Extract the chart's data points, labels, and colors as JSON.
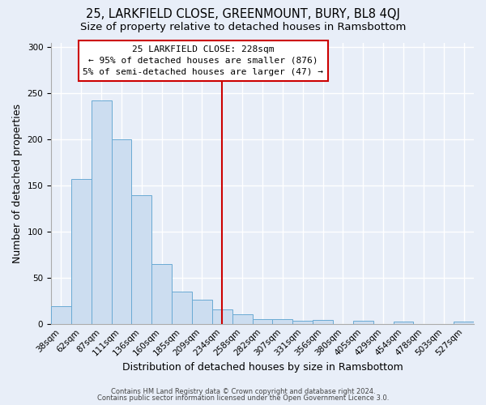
{
  "title": "25, LARKFIELD CLOSE, GREENMOUNT, BURY, BL8 4QJ",
  "subtitle": "Size of property relative to detached houses in Ramsbottom",
  "xlabel": "Distribution of detached houses by size in Ramsbottom",
  "ylabel": "Number of detached properties",
  "bar_labels": [
    "38sqm",
    "62sqm",
    "87sqm",
    "111sqm",
    "136sqm",
    "160sqm",
    "185sqm",
    "209sqm",
    "234sqm",
    "258sqm",
    "282sqm",
    "307sqm",
    "331sqm",
    "356sqm",
    "380sqm",
    "405sqm",
    "429sqm",
    "454sqm",
    "478sqm",
    "503sqm",
    "527sqm"
  ],
  "bar_heights": [
    19,
    157,
    242,
    200,
    139,
    65,
    35,
    26,
    16,
    10,
    5,
    5,
    3,
    4,
    0,
    3,
    0,
    2,
    0,
    0,
    2
  ],
  "bar_color": "#ccddf0",
  "bar_edge_color": "#6aaad4",
  "vline_x": 8,
  "vline_color": "#cc0000",
  "annotation_title": "25 LARKFIELD CLOSE: 228sqm",
  "annotation_line1": "← 95% of detached houses are smaller (876)",
  "annotation_line2": "5% of semi-detached houses are larger (47) →",
  "annotation_box_color": "#ffffff",
  "annotation_box_edge": "#cc0000",
  "ylim": [
    0,
    305
  ],
  "footer1": "Contains HM Land Registry data © Crown copyright and database right 2024.",
  "footer2": "Contains public sector information licensed under the Open Government Licence 3.0.",
  "background_color": "#e8eef8",
  "grid_color": "#ffffff",
  "title_fontsize": 10.5,
  "subtitle_fontsize": 9.5,
  "xlabel_fontsize": 9,
  "ylabel_fontsize": 9,
  "tick_fontsize": 7.5,
  "annotation_fontsize": 8,
  "footer_fontsize": 6
}
